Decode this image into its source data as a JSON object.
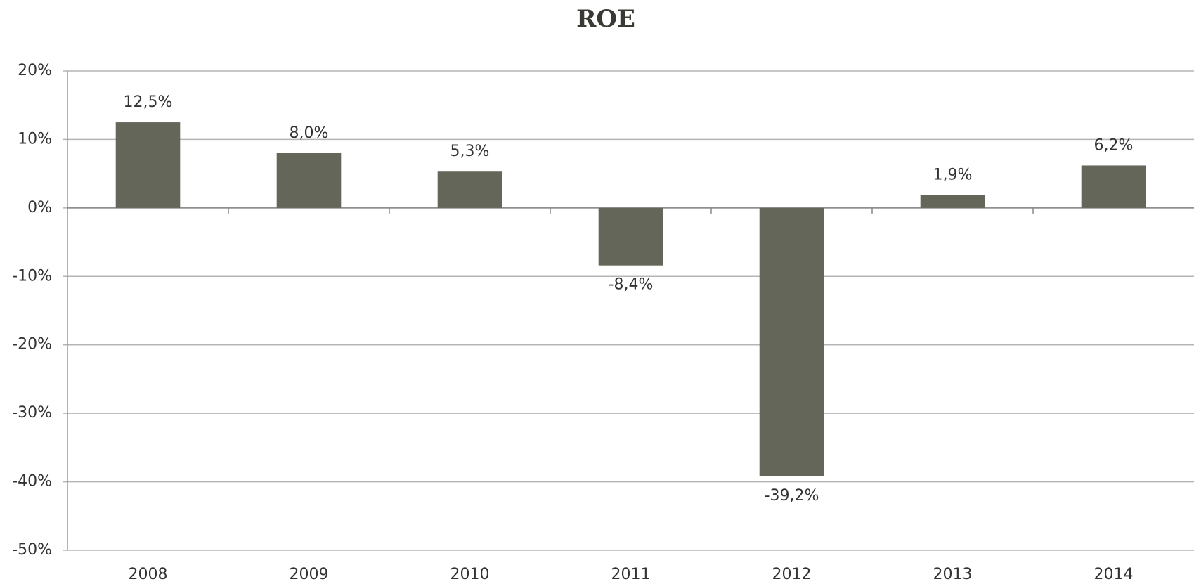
{
  "chart_data": {
    "type": "bar",
    "title": "ROE",
    "categories": [
      "2008",
      "2009",
      "2010",
      "2011",
      "2012",
      "2013",
      "2014"
    ],
    "values": [
      12.5,
      8.0,
      5.3,
      -8.4,
      -39.2,
      1.9,
      6.2
    ],
    "value_labels": [
      "12,5%",
      "8,0%",
      "5,3%",
      "-8,4%",
      "-39,2%",
      "1,9%",
      "6,2%"
    ],
    "color": "#65665a",
    "ylim": [
      -50,
      20
    ],
    "yticks": [
      {
        "value": -50,
        "label": "-50%"
      },
      {
        "value": -40,
        "label": "-40%"
      },
      {
        "value": -30,
        "label": "-30%"
      },
      {
        "value": -20,
        "label": "-20%"
      },
      {
        "value": -10,
        "label": "-10%"
      },
      {
        "value": 0,
        "label": "0%"
      },
      {
        "value": 10,
        "label": "10%"
      },
      {
        "value": 20,
        "label": "20%"
      }
    ],
    "grid": true
  }
}
